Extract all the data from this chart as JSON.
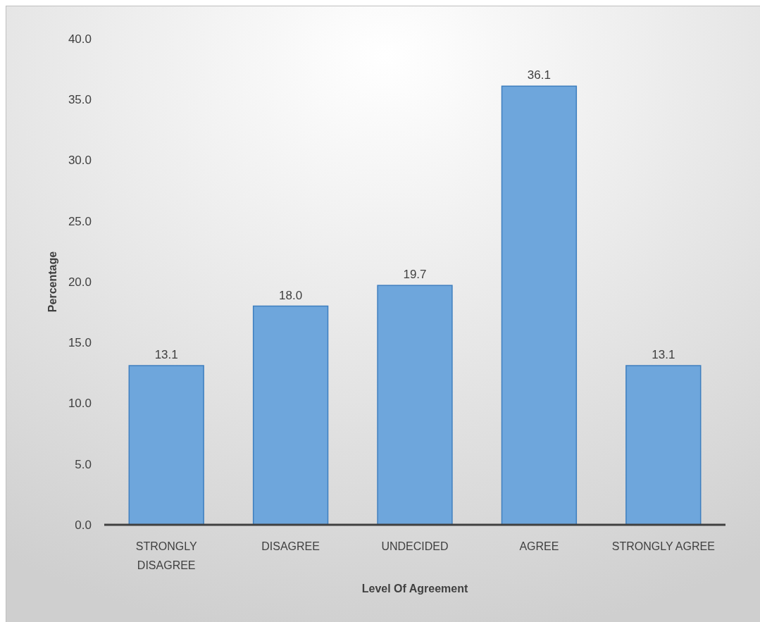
{
  "chart_data": {
    "type": "bar",
    "xlabel": "Level Of Agreement",
    "ylabel": "Percentage",
    "categories": [
      "STRONGLY DISAGREE",
      "DISAGREE",
      "UNDECIDED",
      "AGREE",
      "STRONGLY AGREE"
    ],
    "values": [
      13.1,
      18.0,
      19.7,
      36.1,
      13.1
    ],
    "value_labels": [
      "13.1",
      "18.0",
      "19.7",
      "36.1",
      "13.1"
    ],
    "color": "#6ea6dc",
    "ylim": [
      0,
      40
    ],
    "yticks": [
      {
        "value": 0,
        "label": "0.0"
      },
      {
        "value": 5,
        "label": "5.0"
      },
      {
        "value": 10,
        "label": "10.0"
      },
      {
        "value": 15,
        "label": "15.0"
      },
      {
        "value": 20,
        "label": "20.0"
      },
      {
        "value": 25,
        "label": "25.0"
      },
      {
        "value": 30,
        "label": "30.0"
      },
      {
        "value": 35,
        "label": "35.0"
      },
      {
        "value": 40,
        "label": "40.0"
      }
    ],
    "grid": false
  }
}
